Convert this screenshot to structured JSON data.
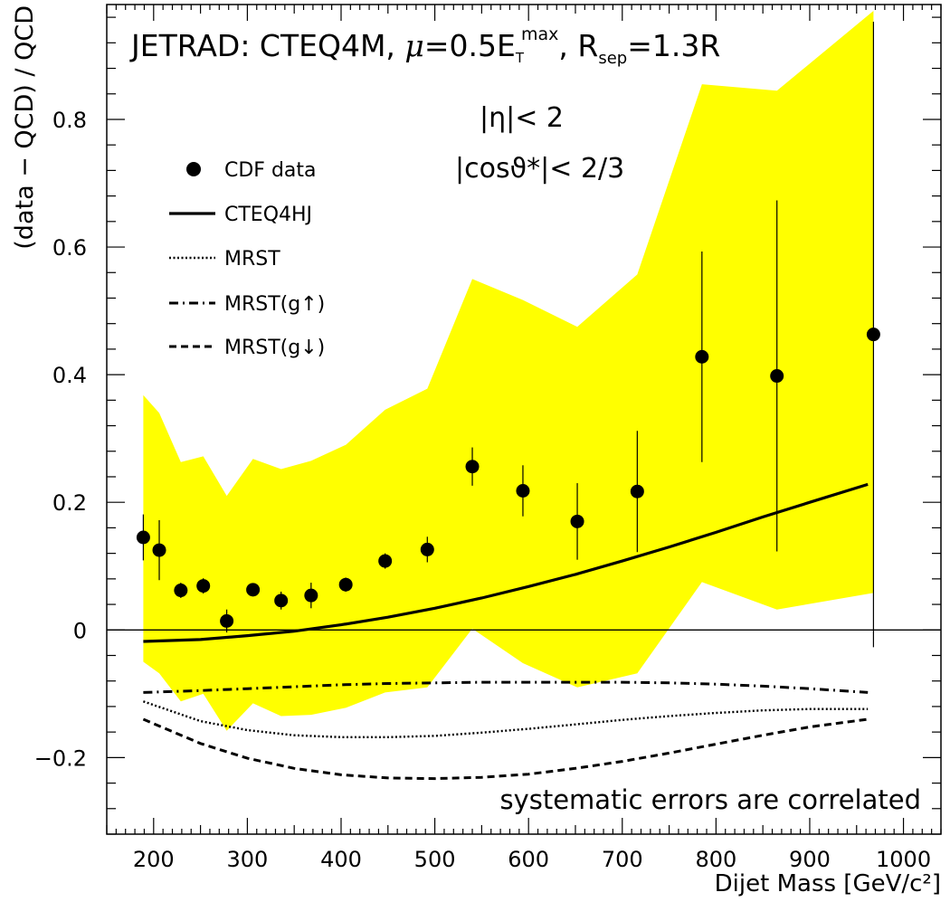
{
  "chart_data": {
    "type": "scatter",
    "title_parts": {
      "prefix": "JETRAD: CTEQ4M, ",
      "mu": "μ",
      "eq": "=0.5E",
      "sub_T": "T",
      "sup_max": "max",
      "sep_pre": ", R",
      "sub_sep": "sep",
      "sep_post": "=1.3R"
    },
    "cuts": {
      "eta": "|η|< 2",
      "cos": "|cosϑ*|< 2/3"
    },
    "annotation": "systematic errors are correlated",
    "xlabel": "Dijet Mass [GeV/c²]",
    "ylabel": "(data − QCD) / QCD",
    "xlim": [
      150,
      1040
    ],
    "ylim": [
      -0.32,
      0.98
    ],
    "x_ticks": [
      200,
      300,
      400,
      500,
      600,
      700,
      800,
      900,
      1000
    ],
    "x_tick_labels": [
      "200",
      "300",
      "400",
      "500",
      "600",
      "700",
      "800",
      "900",
      "1000"
    ],
    "y_ticks": [
      -0.2,
      0,
      0.2,
      0.4,
      0.6,
      0.8
    ],
    "y_tick_labels": [
      "−0.2",
      "0",
      "0.2",
      "0.4",
      "0.6",
      "0.8"
    ],
    "legend": {
      "position": "upper-left",
      "entries": [
        {
          "label": "CDF data",
          "style": "marker"
        },
        {
          "label": "CTEQ4HJ",
          "style": "solid"
        },
        {
          "label": "MRST",
          "style": "dotted"
        },
        {
          "label": "MRST(g↑)",
          "style": "dashdot"
        },
        {
          "label": "MRST(g↓)",
          "style": "dashed"
        }
      ]
    },
    "data_points": {
      "x": [
        189,
        206,
        229,
        253,
        278,
        306,
        336,
        368,
        405,
        447,
        492,
        540,
        594,
        652,
        716,
        785,
        865,
        968
      ],
      "y": [
        0.145,
        0.125,
        0.062,
        0.069,
        0.014,
        0.063,
        0.046,
        0.054,
        0.071,
        0.108,
        0.126,
        0.256,
        0.218,
        0.17,
        0.217,
        0.428,
        0.398,
        0.463
      ],
      "err": [
        0.036,
        0.047,
        0.012,
        0.012,
        0.018,
        0.01,
        0.014,
        0.02,
        0.011,
        0.012,
        0.02,
        0.03,
        0.04,
        0.06,
        0.095,
        0.165,
        0.275,
        0.49
      ]
    },
    "systematic_band": {
      "color": "#ffff00",
      "x": [
        189,
        206,
        229,
        253,
        278,
        306,
        336,
        368,
        405,
        447,
        492,
        540,
        594,
        652,
        716,
        785,
        865,
        968
      ],
      "upper": [
        0.368,
        0.34,
        0.263,
        0.272,
        0.21,
        0.268,
        0.252,
        0.265,
        0.29,
        0.345,
        0.378,
        0.55,
        0.517,
        0.475,
        0.557,
        0.855,
        0.845,
        0.97
      ],
      "lower": [
        -0.05,
        -0.068,
        -0.112,
        -0.1,
        -0.158,
        -0.115,
        -0.135,
        -0.133,
        -0.122,
        -0.098,
        -0.09,
        0.002,
        -0.052,
        -0.09,
        -0.068,
        0.075,
        0.032,
        0.058
      ]
    },
    "series": [
      {
        "name": "CTEQ4HJ",
        "style": "solid",
        "x": [
          189,
          250,
          300,
          350,
          400,
          450,
          500,
          550,
          600,
          650,
          700,
          750,
          800,
          850,
          900,
          962
        ],
        "y": [
          -0.018,
          -0.015,
          -0.009,
          -0.002,
          0.008,
          0.02,
          0.034,
          0.05,
          0.068,
          0.087,
          0.108,
          0.13,
          0.153,
          0.177,
          0.2,
          0.228
        ]
      },
      {
        "name": "MRST",
        "style": "dotted",
        "x": [
          189,
          250,
          300,
          350,
          400,
          450,
          500,
          550,
          600,
          650,
          700,
          750,
          800,
          850,
          900,
          962
        ],
        "y": [
          -0.112,
          -0.143,
          -0.157,
          -0.165,
          -0.168,
          -0.168,
          -0.166,
          -0.161,
          -0.155,
          -0.148,
          -0.141,
          -0.135,
          -0.13,
          -0.126,
          -0.124,
          -0.124
        ]
      },
      {
        "name": "MRST(g↑)",
        "style": "dashdot",
        "x": [
          189,
          250,
          300,
          350,
          400,
          450,
          500,
          550,
          600,
          650,
          700,
          750,
          800,
          850,
          900,
          962
        ],
        "y": [
          -0.098,
          -0.095,
          -0.092,
          -0.089,
          -0.086,
          -0.084,
          -0.083,
          -0.082,
          -0.082,
          -0.082,
          -0.082,
          -0.083,
          -0.085,
          -0.088,
          -0.092,
          -0.098
        ]
      },
      {
        "name": "MRST(g↓)",
        "style": "dashed",
        "x": [
          189,
          250,
          300,
          350,
          400,
          450,
          500,
          550,
          600,
          650,
          700,
          750,
          800,
          850,
          900,
          962
        ],
        "y": [
          -0.14,
          -0.178,
          -0.201,
          -0.217,
          -0.227,
          -0.232,
          -0.233,
          -0.231,
          -0.226,
          -0.217,
          -0.206,
          -0.193,
          -0.179,
          -0.165,
          -0.152,
          -0.14
        ]
      }
    ]
  }
}
